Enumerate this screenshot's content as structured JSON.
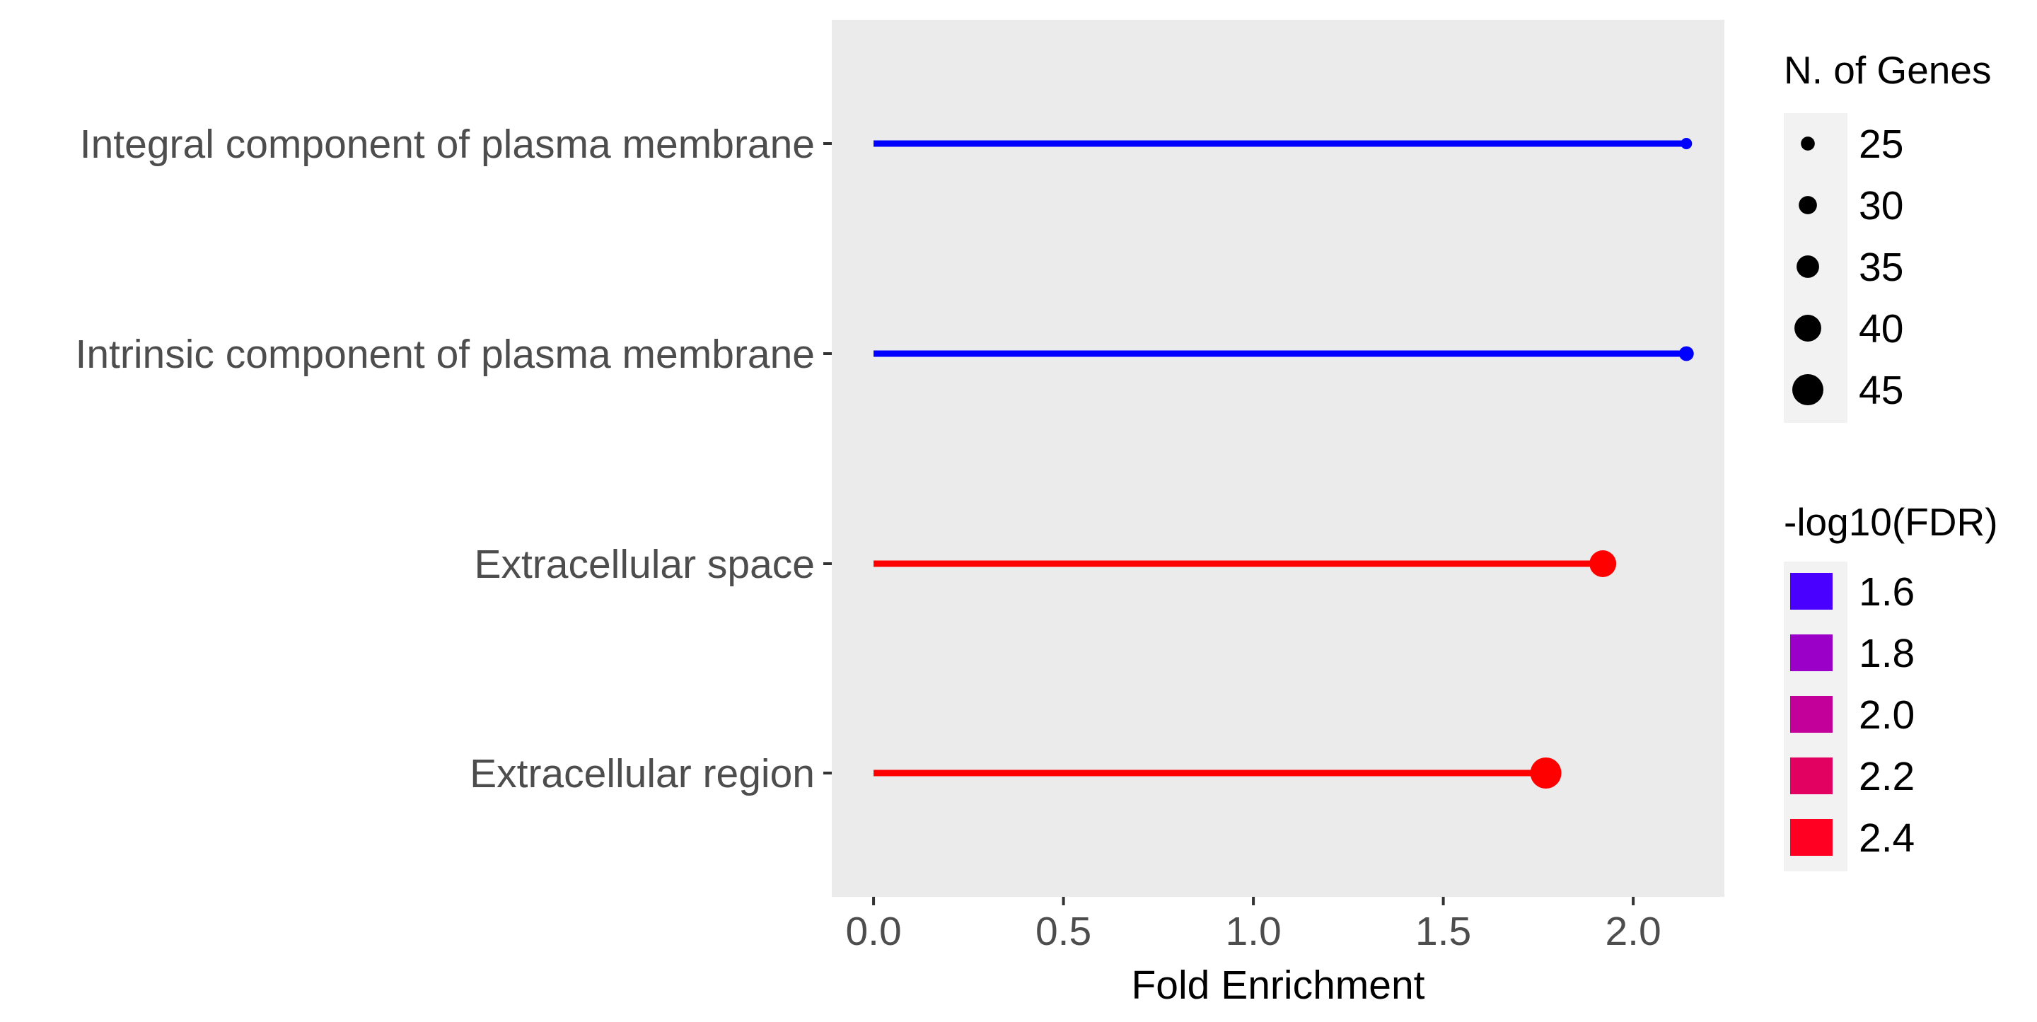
{
  "chart_data": {
    "type": "lollipop",
    "title": "",
    "xlabel": "Fold Enrichment",
    "ylabel": "",
    "xlim": [
      -0.11,
      2.24
    ],
    "x_ticks": [
      0.0,
      0.5,
      1.0,
      1.5,
      2.0
    ],
    "x_tick_labels": [
      "0.0",
      "0.5",
      "1.0",
      "1.5",
      "2.0"
    ],
    "grid": false,
    "categories": [
      "Integral component of plasma membrane",
      "Intrinsic component of plasma membrane",
      "Extracellular space",
      "Extracellular region"
    ],
    "fold_enrichment": [
      2.14,
      2.14,
      1.92,
      1.77
    ],
    "n_genes": [
      22,
      26,
      40,
      45
    ],
    "neg_log10_fdr": [
      1.5,
      1.5,
      2.5,
      2.5
    ],
    "legends": {
      "size": {
        "title": "N. of Genes",
        "values": [
          25,
          30,
          35,
          40,
          45
        ],
        "labels": [
          "25",
          "30",
          "35",
          "40",
          "45"
        ]
      },
      "color": {
        "title": "-log10(FDR)",
        "values": [
          1.6,
          1.8,
          2.0,
          2.2,
          2.4
        ],
        "labels": [
          "1.6",
          "1.8",
          "2.0",
          "2.2",
          "2.4"
        ],
        "colors": [
          "#4a00ff",
          "#9b00c8",
          "#c4009a",
          "#e20060",
          "#ff0022"
        ]
      }
    },
    "color_scale": {
      "low": "#0000ff",
      "high": "#ff0000",
      "min": 1.5,
      "max": 2.5
    },
    "panel_background": "#ebebeb",
    "legend_background": "#f2f2f2",
    "legend_position": "right"
  }
}
